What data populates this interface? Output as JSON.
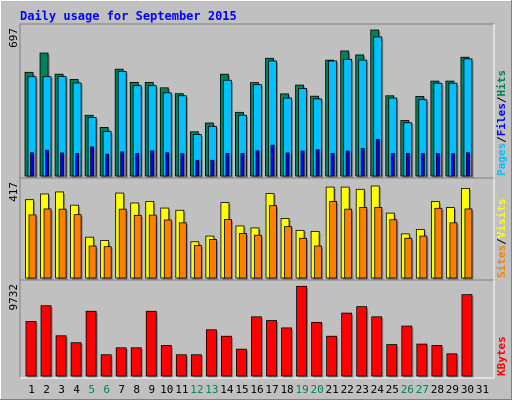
{
  "chart_data": {
    "type": "bar",
    "title": "Daily usage for September 2015",
    "x": [
      "1",
      "2",
      "3",
      "4",
      "5",
      "6",
      "7",
      "8",
      "9",
      "10",
      "11",
      "12",
      "13",
      "14",
      "15",
      "16",
      "17",
      "18",
      "19",
      "20",
      "21",
      "22",
      "23",
      "24",
      "25",
      "26",
      "27",
      "28",
      "29",
      "30",
      "31"
    ],
    "weekend_days": [
      "5",
      "6",
      "12",
      "13",
      "19",
      "20",
      "26",
      "27"
    ],
    "panels": [
      {
        "id": "hits_files_pages",
        "max_label": "697",
        "ymax": 697,
        "legend": [
          {
            "text": "Pages",
            "color": "#00c0ff"
          },
          {
            "text": "/",
            "color": "#000000"
          },
          {
            "text": "Files",
            "color": "#0000ff"
          },
          {
            "text": "/",
            "color": "#000000"
          },
          {
            "text": "Hits",
            "color": "#00805c"
          }
        ],
        "series": [
          {
            "name": "Hits",
            "color": "#00805c",
            "values": [
              495,
              587,
              486,
              461,
              290,
              232,
              510,
              447,
              447,
              421,
              393,
              211,
              253,
              486,
              304,
              446,
              562,
              392,
              434,
              381,
              553,
              597,
              578,
              697,
              383,
              265,
              380,
              453,
              453,
              567,
              0
            ]
          },
          {
            "name": "Files",
            "color": "#00c0ff",
            "values": [
              474,
              474,
              475,
              444,
              279,
              212,
              499,
              431,
              431,
              397,
              383,
              198,
              237,
              457,
              290,
              436,
              549,
              372,
              418,
              368,
              549,
              557,
              553,
              664,
              372,
              254,
              364,
              443,
              443,
              559,
              0
            ]
          },
          {
            "name": "Pages",
            "color": "#0000ff",
            "values": [
              111,
              123,
              110,
              108,
              139,
              104,
              115,
              108,
              120,
              111,
              107,
              75,
              75,
              108,
              108,
              120,
              147,
              110,
              119,
              125,
              108,
              119,
              132,
              175,
              108,
              108,
              108,
              107,
              107,
              111,
              0
            ]
          }
        ]
      },
      {
        "id": "visits_sites",
        "max_label": "417",
        "ymax": 417,
        "legend": [
          {
            "text": "Sites",
            "color": "#ff8000"
          },
          {
            "text": "/",
            "color": "#000000"
          },
          {
            "text": "Visits",
            "color": "#ffff00"
          }
        ],
        "series": [
          {
            "name": "Visits",
            "color": "#ffff00",
            "values": [
              355,
              381,
              390,
              330,
              185,
              170,
              385,
              340,
              347,
              317,
              307,
              164,
              190,
              342,
              236,
              227,
              383,
              270,
              216,
              211,
              412,
              412,
              402,
              417,
              294,
              200,
              220,
              346,
              319,
              406,
              0
            ]
          },
          {
            "name": "Sites",
            "color": "#ff8000",
            "values": [
              286,
              313,
              312,
              287,
              145,
              142,
              312,
              284,
              285,
              263,
              250,
              147,
              175,
              265,
              202,
              194,
              328,
              233,
              180,
              145,
              347,
              312,
              320,
              320,
              264,
              180,
              190,
              316,
              250,
              313,
              0
            ]
          }
        ]
      },
      {
        "id": "kbytes",
        "max_label": "9732",
        "ymax": 9732,
        "legend": [
          {
            "text": "KBytes",
            "color": "#ff0000"
          }
        ],
        "series": [
          {
            "name": "KBytes",
            "color": "#ff0000",
            "values": [
              5900,
              7600,
              4350,
              3600,
              7000,
              2300,
              3050,
              3050,
              7000,
              3300,
              2300,
              2300,
              5000,
              4300,
              2900,
              6400,
              6000,
              5200,
              9700,
              5800,
              4300,
              6800,
              7500,
              6400,
              3400,
              5400,
              3450,
              3300,
              2400,
              8800,
              0
            ]
          }
        ]
      }
    ],
    "grid": false
  }
}
